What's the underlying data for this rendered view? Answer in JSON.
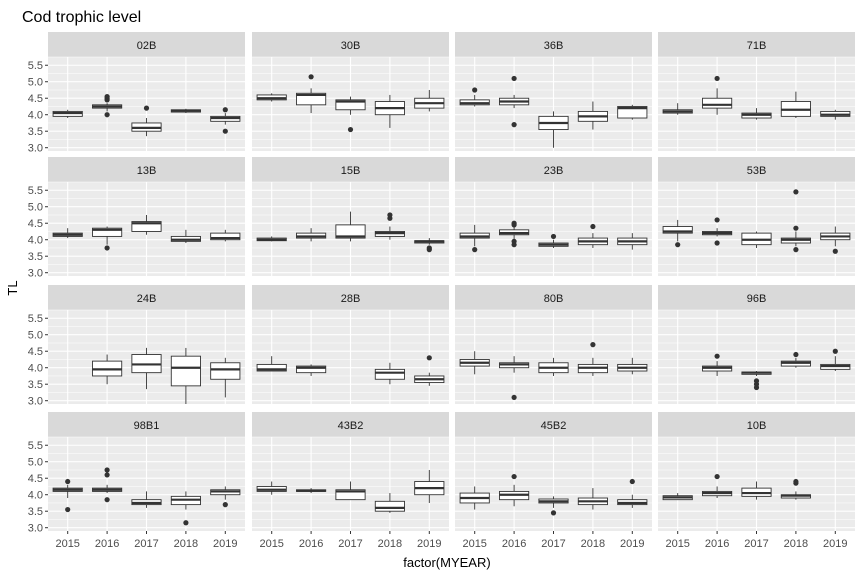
{
  "chart_data": {
    "type": "boxplot",
    "title": "Cod trophic level",
    "xlabel": "factor(MYEAR)",
    "ylabel": "TL",
    "categories": [
      "2015",
      "2016",
      "2017",
      "2018",
      "2019"
    ],
    "y_ticks": [
      "3.0",
      "3.5",
      "4.0",
      "4.5",
      "5.0",
      "5.5"
    ],
    "ylim": [
      2.9,
      5.75
    ],
    "grid": true,
    "layout": "4x4 facets",
    "colors": {
      "panel_bg": "#ebebeb",
      "strip_bg": "#d9d9d9",
      "grid": "#ffffff",
      "box_fill": "#ffffff",
      "line": "#333333"
    },
    "facets": [
      {
        "name": "02B",
        "boxes": [
          {
            "x": "2015",
            "lw": 3.9,
            "q1": 3.95,
            "med": 4.05,
            "q3": 4.1,
            "uw": 4.15,
            "out": []
          },
          {
            "x": "2016",
            "lw": 4.1,
            "q1": 4.2,
            "med": 4.25,
            "q3": 4.3,
            "uw": 4.35,
            "out": [
              4.0,
              4.45,
              4.5,
              4.55
            ]
          },
          {
            "x": "2017",
            "lw": 3.35,
            "q1": 3.5,
            "med": 3.6,
            "q3": 3.75,
            "uw": 3.9,
            "out": [
              4.2
            ]
          },
          {
            "x": "2018",
            "lw": 4.05,
            "q1": 4.08,
            "med": 4.12,
            "q3": 4.15,
            "uw": 4.18,
            "out": []
          },
          {
            "x": "2019",
            "lw": 3.7,
            "q1": 3.8,
            "med": 3.9,
            "q3": 3.95,
            "uw": 4.05,
            "out": [
              3.5,
              4.15
            ]
          }
        ]
      },
      {
        "name": "30B",
        "boxes": [
          {
            "x": "2015",
            "lw": 4.4,
            "q1": 4.45,
            "med": 4.5,
            "q3": 4.6,
            "uw": 4.65,
            "out": []
          },
          {
            "x": "2016",
            "lw": 4.05,
            "q1": 4.3,
            "med": 4.6,
            "q3": 4.65,
            "uw": 4.8,
            "out": [
              5.15
            ]
          },
          {
            "x": "2017",
            "lw": 4.0,
            "q1": 4.15,
            "med": 4.4,
            "q3": 4.45,
            "uw": 4.55,
            "out": [
              3.55
            ]
          },
          {
            "x": "2018",
            "lw": 3.6,
            "q1": 4.0,
            "med": 4.2,
            "q3": 4.4,
            "uw": 4.6,
            "out": []
          },
          {
            "x": "2019",
            "lw": 4.1,
            "q1": 4.2,
            "med": 4.35,
            "q3": 4.5,
            "uw": 4.75,
            "out": []
          }
        ]
      },
      {
        "name": "36B",
        "boxes": [
          {
            "x": "2015",
            "lw": 4.25,
            "q1": 4.3,
            "med": 4.35,
            "q3": 4.45,
            "uw": 4.6,
            "out": [
              4.75
            ]
          },
          {
            "x": "2016",
            "lw": 4.2,
            "q1": 4.3,
            "med": 4.4,
            "q3": 4.5,
            "uw": 4.6,
            "out": [
              3.7,
              5.1
            ]
          },
          {
            "x": "2017",
            "lw": 3.0,
            "q1": 3.55,
            "med": 3.75,
            "q3": 3.95,
            "uw": 4.1,
            "out": []
          },
          {
            "x": "2018",
            "lw": 3.55,
            "q1": 3.8,
            "med": 3.95,
            "q3": 4.1,
            "uw": 4.4,
            "out": []
          },
          {
            "x": "2019",
            "lw": 3.85,
            "q1": 3.9,
            "med": 4.2,
            "q3": 4.25,
            "uw": 4.3,
            "out": []
          }
        ]
      },
      {
        "name": "71B",
        "boxes": [
          {
            "x": "2015",
            "lw": 4.0,
            "q1": 4.05,
            "med": 4.1,
            "q3": 4.15,
            "uw": 4.35,
            "out": []
          },
          {
            "x": "2016",
            "lw": 4.0,
            "q1": 4.2,
            "med": 4.3,
            "q3": 4.5,
            "uw": 4.8,
            "out": [
              5.1
            ]
          },
          {
            "x": "2017",
            "lw": 3.85,
            "q1": 3.9,
            "med": 4.0,
            "q3": 4.05,
            "uw": 4.2,
            "out": []
          },
          {
            "x": "2018",
            "lw": 3.9,
            "q1": 3.95,
            "med": 4.15,
            "q3": 4.4,
            "uw": 4.7,
            "out": []
          },
          {
            "x": "2019",
            "lw": 3.85,
            "q1": 3.95,
            "med": 4.0,
            "q3": 4.1,
            "uw": 4.15,
            "out": []
          }
        ]
      },
      {
        "name": "13B",
        "boxes": [
          {
            "x": "2015",
            "lw": 4.05,
            "q1": 4.1,
            "med": 4.15,
            "q3": 4.2,
            "uw": 4.35,
            "out": []
          },
          {
            "x": "2016",
            "lw": 3.85,
            "q1": 4.1,
            "med": 4.3,
            "q3": 4.35,
            "uw": 4.4,
            "out": [
              3.75
            ]
          },
          {
            "x": "2017",
            "lw": 4.15,
            "q1": 4.25,
            "med": 4.5,
            "q3": 4.55,
            "uw": 4.75,
            "out": []
          },
          {
            "x": "2018",
            "lw": 3.9,
            "q1": 3.95,
            "med": 4.0,
            "q3": 4.1,
            "uw": 4.3,
            "out": []
          },
          {
            "x": "2019",
            "lw": 3.95,
            "q1": 4.0,
            "med": 4.05,
            "q3": 4.2,
            "uw": 4.3,
            "out": []
          }
        ]
      },
      {
        "name": "15B",
        "boxes": [
          {
            "x": "2015",
            "lw": 3.95,
            "q1": 3.97,
            "med": 4.0,
            "q3": 4.05,
            "uw": 4.1,
            "out": []
          },
          {
            "x": "2016",
            "lw": 3.95,
            "q1": 4.05,
            "med": 4.1,
            "q3": 4.2,
            "uw": 4.35,
            "out": []
          },
          {
            "x": "2017",
            "lw": 3.95,
            "q1": 4.05,
            "med": 4.1,
            "q3": 4.45,
            "uw": 4.85,
            "out": []
          },
          {
            "x": "2018",
            "lw": 4.0,
            "q1": 4.1,
            "med": 4.2,
            "q3": 4.25,
            "uw": 4.4,
            "out": [
              4.65,
              4.75
            ]
          },
          {
            "x": "2019",
            "lw": 3.85,
            "q1": 3.9,
            "med": 3.95,
            "q3": 3.97,
            "uw": 4.05,
            "out": [
              3.7,
              3.75
            ]
          }
        ]
      },
      {
        "name": "23B",
        "boxes": [
          {
            "x": "2015",
            "lw": 3.8,
            "q1": 4.05,
            "med": 4.1,
            "q3": 4.2,
            "uw": 4.45,
            "out": [
              3.7
            ]
          },
          {
            "x": "2016",
            "lw": 4.0,
            "q1": 4.15,
            "med": 4.2,
            "q3": 4.3,
            "uw": 4.4,
            "out": [
              3.85,
              3.95,
              4.45,
              4.5
            ]
          },
          {
            "x": "2017",
            "lw": 3.75,
            "q1": 3.8,
            "med": 3.85,
            "q3": 3.9,
            "uw": 4.0,
            "out": [
              4.1
            ]
          },
          {
            "x": "2018",
            "lw": 3.75,
            "q1": 3.85,
            "med": 3.95,
            "q3": 4.05,
            "uw": 4.2,
            "out": [
              4.4
            ]
          },
          {
            "x": "2019",
            "lw": 3.7,
            "q1": 3.85,
            "med": 3.95,
            "q3": 4.05,
            "uw": 4.2,
            "out": []
          }
        ]
      },
      {
        "name": "53B",
        "boxes": [
          {
            "x": "2015",
            "lw": 3.95,
            "q1": 4.2,
            "med": 4.25,
            "q3": 4.4,
            "uw": 4.6,
            "out": [
              3.85
            ]
          },
          {
            "x": "2016",
            "lw": 4.1,
            "q1": 4.15,
            "med": 4.2,
            "q3": 4.25,
            "uw": 4.35,
            "out": [
              3.9,
              4.6
            ]
          },
          {
            "x": "2017",
            "lw": 3.75,
            "q1": 3.85,
            "med": 4.0,
            "q3": 4.2,
            "uw": 4.25,
            "out": []
          },
          {
            "x": "2018",
            "lw": 3.8,
            "q1": 3.9,
            "med": 4.0,
            "q3": 4.05,
            "uw": 4.25,
            "out": [
              3.7,
              4.35,
              5.45
            ]
          },
          {
            "x": "2019",
            "lw": 3.8,
            "q1": 4.0,
            "med": 4.1,
            "q3": 4.2,
            "uw": 4.4,
            "out": [
              3.65
            ]
          }
        ]
      },
      {
        "name": "24B",
        "boxes": [
          {
            "x": "2016",
            "lw": 3.5,
            "q1": 3.75,
            "med": 3.95,
            "q3": 4.2,
            "uw": 4.4,
            "out": []
          },
          {
            "x": "2017",
            "lw": 3.35,
            "q1": 3.85,
            "med": 4.1,
            "q3": 4.4,
            "uw": 4.6,
            "out": []
          },
          {
            "x": "2018",
            "lw": 2.9,
            "q1": 3.45,
            "med": 4.0,
            "q3": 4.35,
            "uw": 4.6,
            "out": []
          },
          {
            "x": "2019",
            "lw": 3.1,
            "q1": 3.65,
            "med": 3.95,
            "q3": 4.15,
            "uw": 4.3,
            "out": []
          }
        ]
      },
      {
        "name": "28B",
        "boxes": [
          {
            "x": "2015",
            "lw": 3.9,
            "q1": 3.9,
            "med": 3.95,
            "q3": 4.1,
            "uw": 4.35,
            "out": []
          },
          {
            "x": "2016",
            "lw": 3.75,
            "q1": 3.85,
            "med": 4.0,
            "q3": 4.05,
            "uw": 4.1,
            "out": []
          },
          {
            "x": "2018",
            "lw": 3.5,
            "q1": 3.65,
            "med": 3.85,
            "q3": 3.95,
            "uw": 4.15,
            "out": []
          },
          {
            "x": "2019",
            "lw": 3.45,
            "q1": 3.55,
            "med": 3.65,
            "q3": 3.75,
            "uw": 3.85,
            "out": [
              4.3
            ]
          }
        ]
      },
      {
        "name": "80B",
        "boxes": [
          {
            "x": "2015",
            "lw": 3.8,
            "q1": 4.05,
            "med": 4.15,
            "q3": 4.25,
            "uw": 4.5,
            "out": []
          },
          {
            "x": "2016",
            "lw": 3.85,
            "q1": 4.0,
            "med": 4.1,
            "q3": 4.15,
            "uw": 4.35,
            "out": [
              3.1
            ]
          },
          {
            "x": "2017",
            "lw": 3.75,
            "q1": 3.85,
            "med": 4.0,
            "q3": 4.15,
            "uw": 4.3,
            "out": []
          },
          {
            "x": "2018",
            "lw": 3.75,
            "q1": 3.85,
            "med": 4.0,
            "q3": 4.1,
            "uw": 4.3,
            "out": [
              4.7
            ]
          },
          {
            "x": "2019",
            "lw": 3.8,
            "q1": 3.9,
            "med": 4.0,
            "q3": 4.1,
            "uw": 4.3,
            "out": []
          }
        ]
      },
      {
        "name": "96B",
        "boxes": [
          {
            "x": "2016",
            "lw": 3.75,
            "q1": 3.9,
            "med": 4.0,
            "q3": 4.05,
            "uw": 4.2,
            "out": [
              4.35
            ]
          },
          {
            "x": "2017",
            "lw": 3.75,
            "q1": 3.8,
            "med": 3.85,
            "q3": 3.87,
            "uw": 3.9,
            "out": [
              3.4,
              3.5,
              3.6
            ]
          },
          {
            "x": "2018",
            "lw": 4.0,
            "q1": 4.05,
            "med": 4.15,
            "q3": 4.2,
            "uw": 4.3,
            "out": [
              4.4
            ]
          },
          {
            "x": "2019",
            "lw": 3.9,
            "q1": 3.95,
            "med": 4.05,
            "q3": 4.1,
            "uw": 4.35,
            "out": [
              4.5
            ]
          }
        ]
      },
      {
        "name": "98B1",
        "boxes": [
          {
            "x": "2015",
            "lw": 3.9,
            "q1": 4.1,
            "med": 4.15,
            "q3": 4.2,
            "uw": 4.3,
            "out": [
              3.55,
              4.4
            ]
          },
          {
            "x": "2016",
            "lw": 4.05,
            "q1": 4.1,
            "med": 4.15,
            "q3": 4.2,
            "uw": 4.3,
            "out": [
              3.85,
              4.6,
              4.75
            ]
          },
          {
            "x": "2017",
            "lw": 3.6,
            "q1": 3.7,
            "med": 3.75,
            "q3": 3.85,
            "uw": 4.1,
            "out": []
          },
          {
            "x": "2018",
            "lw": 3.55,
            "q1": 3.7,
            "med": 3.85,
            "q3": 3.95,
            "uw": 4.1,
            "out": [
              3.15
            ]
          },
          {
            "x": "2019",
            "lw": 3.85,
            "q1": 4.0,
            "med": 4.1,
            "q3": 4.15,
            "uw": 4.25,
            "out": [
              3.7
            ]
          }
        ]
      },
      {
        "name": "43B2",
        "boxes": [
          {
            "x": "2015",
            "lw": 4.0,
            "q1": 4.1,
            "med": 4.15,
            "q3": 4.25,
            "uw": 4.4,
            "out": []
          },
          {
            "x": "2016",
            "lw": 4.05,
            "q1": 4.1,
            "med": 4.12,
            "q3": 4.15,
            "uw": 4.2,
            "out": []
          },
          {
            "x": "2017",
            "lw": 3.85,
            "q1": 3.85,
            "med": 4.1,
            "q3": 4.15,
            "uw": 4.4,
            "out": []
          },
          {
            "x": "2018",
            "lw": 3.45,
            "q1": 3.5,
            "med": 3.6,
            "q3": 3.8,
            "uw": 4.05,
            "out": []
          },
          {
            "x": "2019",
            "lw": 3.75,
            "q1": 4.0,
            "med": 4.2,
            "q3": 4.4,
            "uw": 4.75,
            "out": []
          }
        ]
      },
      {
        "name": "45B2",
        "boxes": [
          {
            "x": "2015",
            "lw": 3.55,
            "q1": 3.75,
            "med": 3.9,
            "q3": 4.05,
            "uw": 4.25,
            "out": []
          },
          {
            "x": "2016",
            "lw": 3.65,
            "q1": 3.85,
            "med": 4.0,
            "q3": 4.1,
            "uw": 4.3,
            "out": [
              4.55
            ]
          },
          {
            "x": "2017",
            "lw": 3.6,
            "q1": 3.75,
            "med": 3.8,
            "q3": 3.87,
            "uw": 3.95,
            "out": [
              3.45
            ]
          },
          {
            "x": "2018",
            "lw": 3.55,
            "q1": 3.7,
            "med": 3.8,
            "q3": 3.9,
            "uw": 4.2,
            "out": []
          },
          {
            "x": "2019",
            "lw": 3.6,
            "q1": 3.7,
            "med": 3.75,
            "q3": 3.85,
            "uw": 4.0,
            "out": [
              4.4
            ]
          }
        ]
      },
      {
        "name": "10B",
        "boxes": [
          {
            "x": "2015",
            "lw": 3.85,
            "q1": 3.85,
            "med": 3.92,
            "q3": 3.97,
            "uw": 4.05,
            "out": []
          },
          {
            "x": "2016",
            "lw": 3.9,
            "q1": 3.97,
            "med": 4.05,
            "q3": 4.1,
            "uw": 4.25,
            "out": [
              4.55
            ]
          },
          {
            "x": "2017",
            "lw": 3.85,
            "q1": 3.95,
            "med": 4.05,
            "q3": 4.2,
            "uw": 4.4,
            "out": []
          },
          {
            "x": "2018",
            "lw": 3.85,
            "q1": 3.9,
            "med": 3.97,
            "q3": 4.0,
            "uw": 4.1,
            "out": [
              4.35,
              4.4
            ]
          }
        ]
      }
    ]
  }
}
